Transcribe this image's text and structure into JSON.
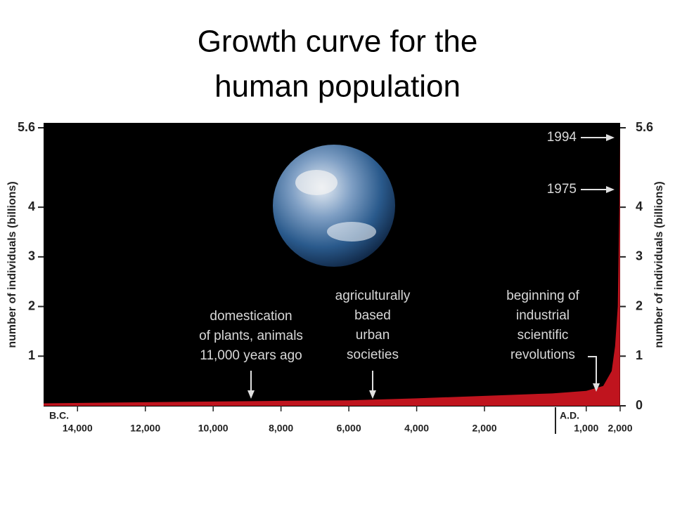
{
  "chart_data": {
    "type": "area",
    "title": [
      "Growth curve for the",
      "human population"
    ],
    "ylabel": "number of individuals (billions)",
    "x_era_labels": [
      "B.C.",
      "A.D."
    ],
    "x": [
      -15000,
      -11000,
      -8000,
      -6000,
      -4000,
      -2000,
      0,
      1000,
      1500,
      1750,
      1850,
      1930,
      1975,
      1994
    ],
    "values": [
      0.05,
      0.08,
      0.1,
      0.11,
      0.15,
      0.2,
      0.25,
      0.3,
      0.4,
      0.7,
      1.2,
      2,
      4,
      5.6
    ],
    "color": "#c0141e",
    "xlim": [
      -15000,
      2000
    ],
    "xticks": [
      {
        "value": -14000,
        "label": "14,000"
      },
      {
        "value": -12000,
        "label": "12,000"
      },
      {
        "value": -10000,
        "label": "10,000"
      },
      {
        "value": -8000,
        "label": "8,000"
      },
      {
        "value": -6000,
        "label": "6,000"
      },
      {
        "value": -4000,
        "label": "4,000"
      },
      {
        "value": -2000,
        "label": "2,000"
      },
      {
        "value": 1000,
        "label": "1,000"
      },
      {
        "value": 2000,
        "label": "2,000"
      }
    ],
    "ylim": [
      0,
      5.6
    ],
    "yticks": [
      1,
      2,
      3,
      4,
      5.6
    ],
    "y2lim": [
      0,
      5.6
    ],
    "y2ticks": [
      0,
      1,
      2,
      3,
      4,
      5.6
    ],
    "annotations": [
      {
        "lines": [
          "1994"
        ]
      },
      {
        "lines": [
          "1975"
        ]
      },
      {
        "lines": [
          "domestication",
          "of plants, animals",
          "11,000 years ago"
        ]
      },
      {
        "lines": [
          "agriculturally",
          "based",
          "urban",
          "societies"
        ]
      },
      {
        "lines": [
          "beginning of",
          "industrial",
          "scientific",
          "revolutions"
        ]
      }
    ]
  }
}
